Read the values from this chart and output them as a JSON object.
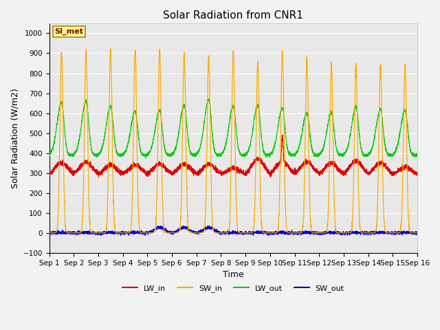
{
  "title": "Solar Radiation from CNR1",
  "xlabel": "Time",
  "ylabel": "Solar Radiation (W/m2)",
  "ylim": [
    -100,
    1050
  ],
  "yticks": [
    -100,
    0,
    100,
    200,
    300,
    400,
    500,
    600,
    700,
    800,
    900,
    1000
  ],
  "num_days": 15,
  "bg_color": "#e8e8e8",
  "plot_bg_color": "#e8e8e8",
  "lw_in_color": "#dd0000",
  "sw_in_color": "#ffaa00",
  "lw_out_color": "#00cc00",
  "sw_out_color": "#0000cc",
  "annotation_text": "SI_met",
  "annotation_bg": "#ffff99",
  "annotation_border": "#aa8800",
  "annotation_text_color": "#880000",
  "legend_labels": [
    "LW_in",
    "SW_in",
    "LW_out",
    "SW_out"
  ],
  "grid_color": "#ffffff",
  "title_fontsize": 11,
  "axis_label_fontsize": 9,
  "tick_fontsize": 7.5
}
